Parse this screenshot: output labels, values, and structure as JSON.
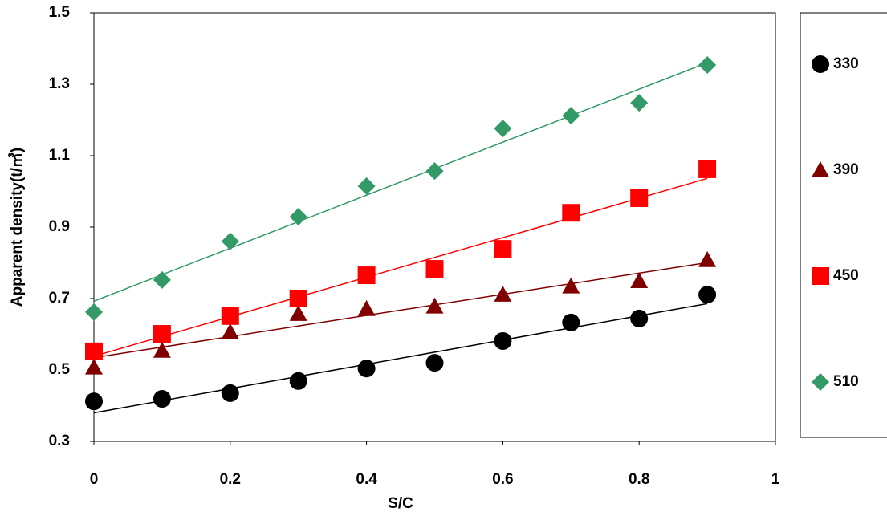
{
  "chart_data": {
    "type": "scatter",
    "x_label": "S/C",
    "y_label": "Apparent density(t/㎥)",
    "x": [
      0,
      0.1,
      0.2,
      0.3,
      0.4,
      0.5,
      0.6,
      0.7,
      0.8,
      0.9
    ],
    "series": [
      {
        "name": "330",
        "color": "#000000",
        "marker": "circle",
        "values": [
          0.412,
          0.419,
          0.435,
          0.469,
          0.504,
          0.52,
          0.581,
          0.633,
          0.644,
          0.711
        ]
      },
      {
        "name": "390",
        "color": "#800000",
        "marker": "triangle",
        "values": [
          0.507,
          0.554,
          0.606,
          0.657,
          0.671,
          0.678,
          0.711,
          0.734,
          0.749,
          0.808
        ]
      },
      {
        "name": "450",
        "color": "#ff0000",
        "marker": "square",
        "values": [
          0.552,
          0.601,
          0.651,
          0.7,
          0.765,
          0.783,
          0.839,
          0.94,
          0.981,
          1.062
        ]
      },
      {
        "name": "510",
        "color": "#339966",
        "marker": "diamond",
        "values": [
          0.662,
          0.752,
          0.86,
          0.929,
          1.015,
          1.057,
          1.176,
          1.212,
          1.248,
          1.354
        ]
      }
    ],
    "xlim": [
      0,
      1
    ],
    "xticks": [
      0,
      0.2,
      0.4,
      0.6,
      0.8,
      1
    ],
    "ylim": [
      0.3,
      1.5
    ],
    "yticks": [
      0.3,
      0.5,
      0.7,
      0.9,
      1.1,
      1.3,
      1.5
    ],
    "trendline": true,
    "grid": false,
    "legend": "right"
  }
}
